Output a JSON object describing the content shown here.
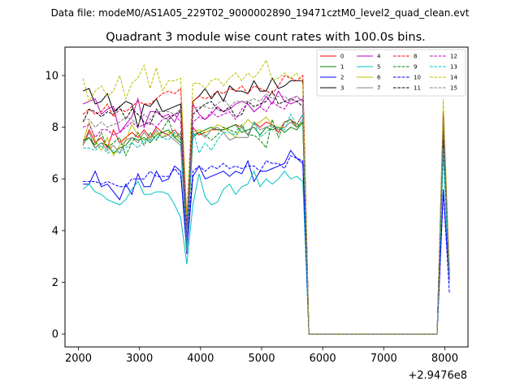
{
  "figure": {
    "suptitle": "Data file: modeM0/AS1A05_229T02_9000002890_19471cztM0_level2_quad_clean.evt",
    "title": "Quadrant 3 module wise count rates with 100.0s bins.",
    "x_offset_label": "+2.9476e8"
  },
  "chart_data": {
    "type": "line",
    "title": "Quadrant 3 module wise count rates with 100.0s bins.",
    "xlabel": "",
    "ylabel": "",
    "xlim": [
      1780,
      8380
    ],
    "ylim": [
      -0.5,
      11.1
    ],
    "x_ticks": [
      2000,
      3000,
      4000,
      5000,
      6000,
      7000,
      8000
    ],
    "x_tick_labels": [
      "2000",
      "3000",
      "4000",
      "5000",
      "6000",
      "7000",
      "8000"
    ],
    "y_ticks": [
      0,
      2,
      4,
      6,
      8,
      10
    ],
    "y_tick_labels": [
      "0",
      "2",
      "4",
      "6",
      "8",
      "10"
    ],
    "grid": false,
    "legend_placement": "top-right",
    "legend_columns": 4,
    "x": [
      2075,
      2175,
      2275,
      2375,
      2475,
      2575,
      2675,
      2775,
      2875,
      2975,
      3075,
      3175,
      3275,
      3375,
      3475,
      3575,
      3675,
      3775,
      3875,
      3975,
      4075,
      4175,
      4275,
      4375,
      4475,
      4575,
      4675,
      4775,
      4875,
      4975,
      5075,
      5175,
      5275,
      5375,
      5475,
      5575,
      5675,
      5775,
      5875,
      5975,
      6075,
      6175,
      6275,
      6375,
      6475,
      6575,
      6675,
      6775,
      6875,
      6975,
      7075,
      7175,
      7275,
      7375,
      7475,
      7575,
      7675,
      7775,
      7875,
      7975,
      8075
    ],
    "series": [
      {
        "name": "0",
        "color": "#ff0000",
        "dash": "solid",
        "values": [
          7.3,
          7.9,
          7.4,
          7.6,
          7.2,
          7.9,
          7.4,
          7.6,
          7.8,
          7.6,
          7.9,
          7.6,
          8.0,
          7.8,
          7.7,
          7.9,
          7.6,
          3.4,
          8.0,
          7.7,
          7.8,
          7.9,
          7.9,
          7.9,
          8.0,
          8.1,
          8.0,
          7.7,
          8.2,
          8.0,
          8.2,
          8.1,
          7.8,
          8.2,
          8.3,
          8.1,
          8.5,
          0,
          0,
          0,
          0,
          0,
          0,
          0,
          0,
          0,
          0,
          0,
          0,
          0,
          0,
          0,
          0,
          0,
          0,
          0,
          0,
          0,
          0,
          8.3,
          2.4
        ]
      },
      {
        "name": "1",
        "color": "#008000",
        "dash": "solid",
        "values": [
          7.4,
          7.6,
          7.2,
          7.4,
          7.3,
          7.0,
          7.2,
          7.3,
          7.6,
          7.5,
          7.6,
          7.4,
          7.7,
          7.8,
          7.9,
          7.6,
          7.4,
          3.4,
          7.6,
          7.8,
          7.9,
          8.0,
          7.9,
          7.9,
          8.0,
          8.1,
          7.8,
          7.9,
          8.0,
          7.7,
          8.0,
          7.9,
          8.0,
          7.8,
          8.0,
          7.9,
          8.2,
          0,
          0,
          0,
          0,
          0,
          0,
          0,
          0,
          0,
          0,
          0,
          0,
          0,
          0,
          0,
          0,
          0,
          0,
          0,
          0,
          0,
          0,
          7.6,
          2.4
        ]
      },
      {
        "name": "2",
        "color": "#0000ff",
        "dash": "solid",
        "values": [
          5.8,
          5.8,
          6.3,
          5.7,
          5.8,
          5.5,
          5.2,
          5.8,
          5.4,
          6.2,
          5.7,
          5.7,
          6.3,
          5.9,
          6.0,
          6.5,
          6.3,
          3.1,
          6.1,
          6.5,
          6.0,
          6.1,
          6.2,
          6.3,
          6.1,
          6.3,
          6.2,
          6.7,
          5.9,
          6.3,
          6.3,
          6.4,
          6.5,
          6.6,
          7.1,
          6.8,
          6.6,
          0,
          0,
          0,
          0,
          0,
          0,
          0,
          0,
          0,
          0,
          0,
          0,
          0,
          0,
          0,
          0,
          0,
          0,
          0,
          0,
          0,
          0,
          5.6,
          2.0
        ]
      },
      {
        "name": "3",
        "color": "#000000",
        "dash": "solid",
        "values": [
          9.4,
          9.5,
          8.9,
          9.0,
          9.3,
          8.6,
          8.8,
          9.0,
          8.9,
          8.0,
          8.9,
          8.8,
          9.1,
          8.6,
          8.7,
          8.8,
          8.9,
          3.9,
          9.0,
          9.2,
          9.5,
          9.1,
          9.4,
          9.0,
          9.6,
          9.4,
          9.4,
          9.3,
          9.8,
          9.4,
          9.4,
          9.9,
          9.5,
          9.6,
          9.8,
          9.8,
          9.8,
          0,
          0,
          0,
          0,
          0,
          0,
          0,
          0,
          0,
          0,
          0,
          0,
          0,
          0,
          0,
          0,
          0,
          0,
          0,
          0,
          0,
          0,
          8.5,
          2.3
        ]
      },
      {
        "name": "4",
        "color": "#bf00bf",
        "dash": "solid",
        "values": [
          8.9,
          9.0,
          9.1,
          8.5,
          8.7,
          8.8,
          7.8,
          8.1,
          8.4,
          9.1,
          8.0,
          8.6,
          8.6,
          8.4,
          8.5,
          8.2,
          8.7,
          3.8,
          8.9,
          8.5,
          8.3,
          8.5,
          8.8,
          8.6,
          8.7,
          8.9,
          9.0,
          8.9,
          8.6,
          8.8,
          9.2,
          8.9,
          9.4,
          9.0,
          8.9,
          9.0,
          9.1,
          0,
          0,
          0,
          0,
          0,
          0,
          0,
          0,
          0,
          0,
          0,
          0,
          0,
          0,
          0,
          0,
          0,
          0,
          0,
          0,
          0,
          0,
          8.6,
          2.1
        ]
      },
      {
        "name": "5",
        "color": "#00bfbf",
        "dash": "solid",
        "values": [
          5.6,
          5.8,
          5.5,
          5.4,
          5.2,
          5.1,
          5.0,
          5.2,
          5.6,
          5.9,
          5.4,
          5.4,
          5.5,
          5.5,
          5.4,
          5.0,
          4.5,
          2.7,
          5.0,
          6.2,
          5.3,
          5.0,
          5.1,
          5.6,
          5.8,
          5.4,
          5.7,
          5.8,
          6.3,
          5.7,
          6.0,
          5.8,
          6.0,
          6.3,
          6.0,
          6.1,
          5.9,
          0,
          0,
          0,
          0,
          0,
          0,
          0,
          0,
          0,
          0,
          0,
          0,
          0,
          0,
          0,
          0,
          0,
          0,
          0,
          0,
          0,
          0,
          7.0,
          2.0
        ]
      },
      {
        "name": "6",
        "color": "#bfbf00",
        "dash": "solid",
        "values": [
          7.4,
          8.2,
          7.5,
          7.1,
          7.6,
          6.9,
          7.3,
          7.5,
          8.1,
          7.7,
          7.5,
          7.6,
          7.8,
          7.6,
          7.8,
          7.7,
          7.5,
          3.3,
          7.8,
          7.9,
          7.8,
          7.9,
          8.1,
          8.0,
          7.8,
          7.6,
          8.0,
          8.3,
          8.1,
          8.2,
          8.4,
          8.1,
          8.0,
          8.0,
          8.2,
          8.1,
          8.1,
          0,
          0,
          0,
          0,
          0,
          0,
          0,
          0,
          0,
          0,
          0,
          0,
          0,
          0,
          0,
          0,
          0,
          0,
          0,
          0,
          0,
          0,
          7.7,
          2.2
        ]
      },
      {
        "name": "7",
        "color": "#808080",
        "dash": "solid",
        "values": [
          7.3,
          7.8,
          7.2,
          7.4,
          7.1,
          7.3,
          7.0,
          7.5,
          7.6,
          7.4,
          7.8,
          7.5,
          7.9,
          7.6,
          7.7,
          7.5,
          7.3,
          3.2,
          7.7,
          7.8,
          7.6,
          7.9,
          8.0,
          7.8,
          7.5,
          7.6,
          7.6,
          7.6,
          8.2,
          7.9,
          8.0,
          8.1,
          7.9,
          8.0,
          8.2,
          8.0,
          8.3,
          0,
          0,
          0,
          0,
          0,
          0,
          0,
          0,
          0,
          0,
          0,
          0,
          0,
          0,
          0,
          0,
          0,
          0,
          0,
          0,
          0,
          0,
          7.4,
          2.1
        ]
      },
      {
        "name": "8",
        "color": "#ff0000",
        "dash": "dashed",
        "values": [
          8.5,
          8.7,
          8.5,
          8.6,
          8.9,
          8.4,
          8.7,
          8.6,
          8.8,
          9.0,
          8.9,
          8.9,
          9.1,
          9.3,
          9.4,
          9.3,
          9.5,
          4.3,
          9.0,
          9.2,
          9.1,
          9.2,
          9.4,
          9.3,
          9.5,
          9.4,
          9.6,
          9.3,
          9.6,
          9.5,
          9.4,
          9.3,
          9.6,
          10.0,
          9.9,
          9.8,
          10.0,
          0,
          0,
          0,
          0,
          0,
          0,
          0,
          0,
          0,
          0,
          0,
          0,
          0,
          0,
          0,
          0,
          0,
          0,
          0,
          0,
          0,
          0,
          8.5,
          2.4
        ]
      },
      {
        "name": "9",
        "color": "#008000",
        "dash": "dashed",
        "values": [
          7.5,
          7.6,
          7.3,
          7.8,
          7.2,
          7.4,
          7.6,
          6.9,
          7.4,
          7.8,
          7.3,
          7.8,
          7.5,
          7.9,
          8.3,
          7.6,
          7.8,
          3.5,
          7.7,
          7.8,
          7.7,
          7.5,
          7.7,
          8.0,
          7.9,
          7.8,
          8.1,
          7.7,
          7.7,
          7.5,
          7.2,
          8.3,
          7.6,
          8.2,
          8.3,
          8.0,
          8.2,
          0,
          0,
          0,
          0,
          0,
          0,
          0,
          0,
          0,
          0,
          0,
          0,
          0,
          0,
          0,
          0,
          0,
          0,
          0,
          0,
          0,
          0,
          7.8,
          2.3
        ]
      },
      {
        "name": "10",
        "color": "#0000ff",
        "dash": "dashed",
        "values": [
          5.9,
          5.9,
          5.9,
          5.8,
          5.9,
          5.8,
          5.7,
          5.7,
          6.0,
          6.0,
          6.0,
          6.3,
          6.1,
          6.1,
          6.1,
          6.4,
          6.1,
          3.6,
          6.3,
          6.5,
          6.3,
          6.5,
          6.4,
          6.6,
          6.4,
          6.5,
          6.4,
          6.5,
          6.5,
          6.3,
          6.7,
          6.6,
          6.6,
          6.4,
          6.9,
          6.8,
          6.7,
          0,
          0,
          0,
          0,
          0,
          0,
          0,
          0,
          0,
          0,
          0,
          0,
          0,
          0,
          0,
          0,
          0,
          0,
          0,
          0,
          0,
          0,
          5.5,
          1.6
        ]
      },
      {
        "name": "11",
        "color": "#000000",
        "dash": "dashed",
        "values": [
          8.2,
          8.7,
          8.6,
          8.4,
          8.6,
          8.5,
          8.8,
          8.3,
          8.7,
          8.5,
          8.2,
          8.1,
          8.7,
          8.4,
          8.3,
          8.5,
          8.6,
          4.0,
          8.5,
          8.7,
          8.9,
          9.0,
          8.7,
          8.6,
          8.8,
          8.4,
          8.5,
          9.0,
          8.8,
          8.9,
          9.0,
          9.4,
          8.9,
          9.0,
          9.1,
          9.0,
          8.8,
          0,
          0,
          0,
          0,
          0,
          0,
          0,
          0,
          0,
          0,
          0,
          0,
          0,
          0,
          0,
          0,
          0,
          0,
          0,
          0,
          0,
          0,
          7.5,
          2.2
        ]
      },
      {
        "name": "12",
        "color": "#bf00bf",
        "dash": "dashed",
        "values": [
          8.0,
          8.1,
          7.6,
          7.9,
          7.9,
          7.7,
          7.8,
          8.0,
          8.2,
          8.0,
          8.1,
          8.2,
          8.0,
          8.3,
          8.4,
          8.5,
          8.2,
          3.5,
          8.2,
          8.4,
          8.3,
          8.6,
          8.4,
          8.5,
          8.6,
          8.3,
          8.7,
          8.9,
          8.6,
          8.8,
          8.6,
          9.0,
          8.8,
          8.7,
          9.1,
          9.2,
          9.0,
          0,
          0,
          0,
          0,
          0,
          0,
          0,
          0,
          0,
          0,
          0,
          0,
          0,
          0,
          0,
          0,
          0,
          0,
          0,
          0,
          0,
          0,
          8.2,
          2.1
        ]
      },
      {
        "name": "13",
        "color": "#00bfbf",
        "dash": "dashed",
        "values": [
          7.2,
          7.2,
          7.1,
          7.3,
          7.0,
          7.1,
          7.0,
          7.2,
          7.4,
          7.2,
          7.5,
          7.5,
          7.6,
          7.6,
          7.5,
          7.8,
          7.5,
          3.4,
          7.9,
          7.0,
          7.4,
          7.1,
          7.5,
          7.8,
          7.8,
          7.7,
          8.0,
          7.7,
          8.2,
          7.6,
          7.8,
          8.0,
          8.0,
          7.9,
          8.5,
          8.1,
          8.5,
          0,
          0,
          0,
          0,
          0,
          0,
          0,
          0,
          0,
          0,
          0,
          0,
          0,
          0,
          0,
          0,
          0,
          0,
          0,
          0,
          0,
          0,
          7.2,
          2.2
        ]
      },
      {
        "name": "14",
        "color": "#bfbf00",
        "dash": "dashed",
        "values": [
          9.9,
          9.0,
          9.4,
          9.6,
          9.2,
          9.4,
          10.0,
          9.1,
          9.7,
          9.9,
          10.4,
          9.5,
          10.3,
          9.4,
          9.8,
          9.8,
          9.9,
          4.6,
          9.7,
          9.7,
          9.5,
          9.8,
          9.9,
          9.6,
          9.9,
          10.1,
          9.8,
          10.1,
          9.9,
          10.2,
          10.6,
          9.8,
          9.9,
          10.1,
          9.9,
          10.1,
          9.7,
          0,
          0,
          0,
          0,
          0,
          0,
          0,
          0,
          0,
          0,
          0,
          0,
          0,
          0,
          0,
          0,
          0,
          0,
          0,
          0,
          0,
          0,
          9.1,
          2.5
        ]
      },
      {
        "name": "15",
        "color": "#808080",
        "dash": "dashed",
        "values": [
          8.3,
          8.3,
          8.0,
          8.2,
          8.0,
          8.1,
          8.2,
          8.4,
          8.3,
          8.1,
          8.5,
          8.3,
          8.6,
          8.6,
          8.6,
          8.5,
          8.7,
          4.0,
          8.7,
          8.8,
          8.8,
          8.7,
          8.9,
          9.1,
          8.8,
          9.0,
          9.0,
          9.0,
          9.1,
          9.0,
          9.3,
          9.1,
          9.2,
          9.2,
          9.0,
          9.2,
          9.0,
          0,
          0,
          0,
          0,
          0,
          0,
          0,
          0,
          0,
          0,
          0,
          0,
          0,
          0,
          0,
          0,
          0,
          0,
          0,
          0,
          0,
          0,
          8.3,
          2.3
        ]
      }
    ]
  }
}
